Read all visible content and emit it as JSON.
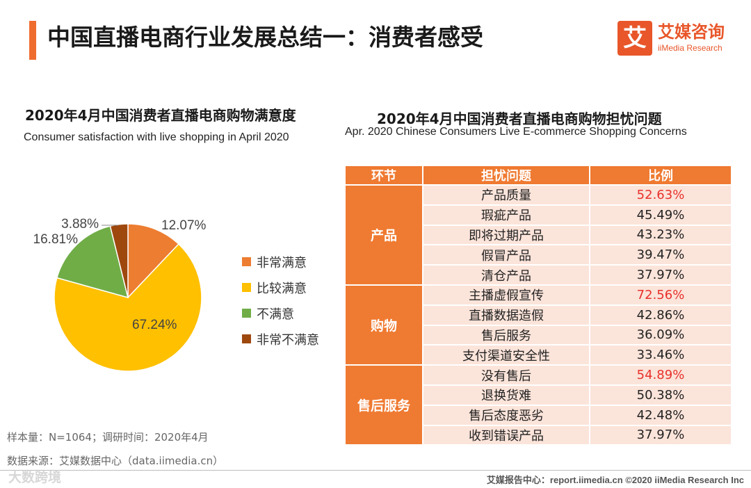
{
  "header": {
    "title": "中国直播电商行业发展总结一：消费者感受",
    "accent_color": "#ef6c2f"
  },
  "logo": {
    "mark": "艾",
    "name_cn": "艾媒咨询",
    "name_en": "iiMedia Research"
  },
  "chart_data": [
    {
      "type": "pie",
      "title": "2020年4月中国消费者直播电商购物满意度",
      "subtitle": "Consumer satisfaction with live shopping in April 2020",
      "legend_position": "right",
      "slices": [
        {
          "label": "非常满意",
          "value": 12.07,
          "display": "12.07%",
          "color": "#ed7d31"
        },
        {
          "label": "比较满意",
          "value": 67.24,
          "display": "67.24%",
          "color": "#ffc000"
        },
        {
          "label": "不满意",
          "value": 16.81,
          "display": "16.81%",
          "color": "#70ad47"
        },
        {
          "label": "非常不满意",
          "value": 3.88,
          "display": "3.88%",
          "color": "#9e480e"
        }
      ]
    },
    {
      "type": "table",
      "title": "2020年4月中国消费者直播电商购物担忧问题",
      "subtitle": "Apr. 2020 Chinese Consumers Live E-commerce Shopping Concerns",
      "columns": [
        "环节",
        "担忧问题",
        "比例"
      ],
      "highlight_color": "#e8302a",
      "groups": [
        {
          "name": "产品",
          "rows": [
            {
              "issue": "产品质量",
              "value": "52.63%",
              "highlight": true
            },
            {
              "issue": "瑕疵产品",
              "value": "45.49%",
              "highlight": false
            },
            {
              "issue": "即将过期产品",
              "value": "43.23%",
              "highlight": false
            },
            {
              "issue": "假冒产品",
              "value": "39.47%",
              "highlight": false
            },
            {
              "issue": "清仓产品",
              "value": "37.97%",
              "highlight": false
            }
          ]
        },
        {
          "name": "购物",
          "rows": [
            {
              "issue": "主播虚假宣传",
              "value": "72.56%",
              "highlight": true
            },
            {
              "issue": "直播数据造假",
              "value": "42.86%",
              "highlight": false
            },
            {
              "issue": "售后服务",
              "value": "36.09%",
              "highlight": false
            },
            {
              "issue": "支付渠道安全性",
              "value": "33.46%",
              "highlight": false
            }
          ]
        },
        {
          "name": "售后服务",
          "rows": [
            {
              "issue": "没有售后",
              "value": "54.89%",
              "highlight": true
            },
            {
              "issue": "退换货难",
              "value": "50.38%",
              "highlight": false
            },
            {
              "issue": "售后态度恶劣",
              "value": "42.48%",
              "highlight": false
            },
            {
              "issue": "收到错误产品",
              "value": "37.97%",
              "highlight": false
            }
          ]
        }
      ]
    }
  ],
  "notes": {
    "sample": "样本量：N=1064；调研时间：2020年4月",
    "source": "数据来源：艾媒数据中心（data.iimedia.cn）"
  },
  "footer": {
    "watermark": "大数跨境",
    "text": "艾媒报告中心：report.iimedia.cn    ©2020  iiMedia Research  Inc"
  }
}
